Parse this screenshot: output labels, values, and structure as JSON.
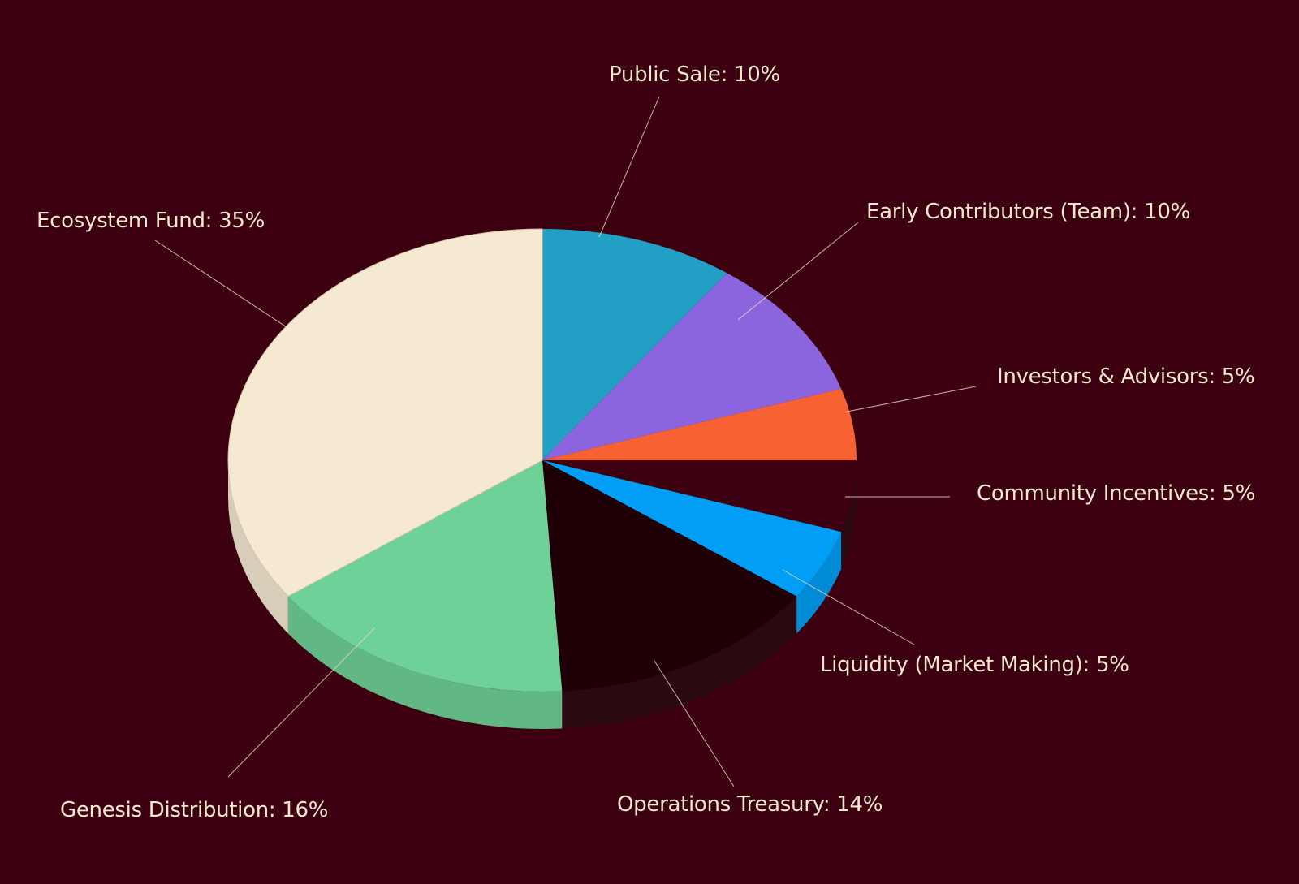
{
  "colors": {
    "background": "#3c0010",
    "label_text": "#f6e7cf",
    "leader_line": "#e8d3bd"
  },
  "chart_data": {
    "type": "pie",
    "style": "3d-tilted",
    "start_angle": "12 o'clock, clockwise",
    "slices": [
      {
        "name": "Public Sale",
        "value": 10,
        "label": "Public Sale: 10%",
        "color": "#229fc4"
      },
      {
        "name": "Early Contributors (Team)",
        "value": 10,
        "label": "Early Contributors (Team): 10%",
        "color": "#8c64dd"
      },
      {
        "name": "Investors & Advisors",
        "value": 5,
        "label": "Investors & Advisors: 5%",
        "color": "#f86232"
      },
      {
        "name": "Community Incentives",
        "value": 5,
        "label": "Community Incentives: 5%",
        "color": "#3c0010"
      },
      {
        "name": "Liquidity (Market Making)",
        "value": 5,
        "label": "Liquidity (Market Making): 5%",
        "color": "#009ef4"
      },
      {
        "name": "Operations Treasury",
        "value": 14,
        "label": "Operations Treasury: 14%",
        "color": "#1e0006"
      },
      {
        "name": "Genesis Distribution",
        "value": 16,
        "label": "Genesis Distribution: 16%",
        "color": "#6ed197"
      },
      {
        "name": "Ecosystem Fund",
        "value": 35,
        "label": "Ecosystem Fund: 35%",
        "color": "#f6e9d1"
      }
    ]
  }
}
